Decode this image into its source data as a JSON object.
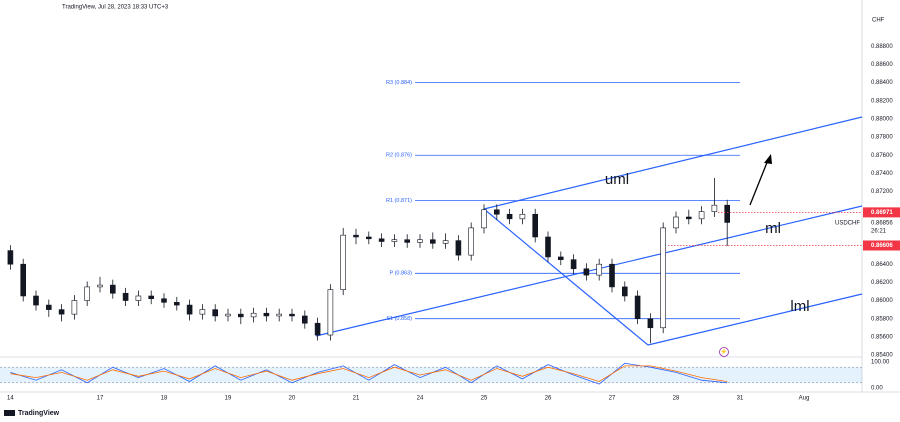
{
  "chart_data": {
    "type": "candlestick",
    "header": "TradingView, Jul 28, 2023 18:33 UTC+3",
    "currency": "CHF",
    "brand": "TradingView",
    "symbol": "USDCHF",
    "countdown": "26:21",
    "up_color": "#ffffff",
    "down_color": "#131722",
    "xlim": [
      -1.5625,
      11.9063
    ],
    "ylim": [
      0.854,
      0.892
    ],
    "grid": false,
    "xticks": [
      {
        "value": -1.4,
        "label": "14"
      },
      {
        "value": 0,
        "label": "17"
      },
      {
        "value": 1,
        "label": "18"
      },
      {
        "value": 2,
        "label": "19"
      },
      {
        "value": 3,
        "label": "20"
      },
      {
        "value": 4,
        "label": "21"
      },
      {
        "value": 5,
        "label": "24"
      },
      {
        "value": 6,
        "label": "25"
      },
      {
        "value": 7,
        "label": "26"
      },
      {
        "value": 8,
        "label": "27"
      },
      {
        "value": 9,
        "label": "28"
      },
      {
        "value": 10,
        "label": "31"
      },
      {
        "value": 11,
        "label": "Aug"
      }
    ],
    "yticks": [
      {
        "value": 0.888,
        "label": "0.88800"
      },
      {
        "value": 0.886,
        "label": "0.88600"
      },
      {
        "value": 0.884,
        "label": "0.88400"
      },
      {
        "value": 0.882,
        "label": "0.88200"
      },
      {
        "value": 0.88,
        "label": "0.88000"
      },
      {
        "value": 0.878,
        "label": "0.87800"
      },
      {
        "value": 0.876,
        "label": "0.87600"
      },
      {
        "value": 0.874,
        "label": "0.87400"
      },
      {
        "value": 0.872,
        "label": "0.87200"
      },
      {
        "value": 0.864,
        "label": "0.86400"
      },
      {
        "value": 0.862,
        "label": "0.86200"
      },
      {
        "value": 0.86,
        "label": "0.86000"
      },
      {
        "value": 0.858,
        "label": "0.85800"
      },
      {
        "value": 0.856,
        "label": "0.85600"
      },
      {
        "value": 0.854,
        "label": "0.85400"
      }
    ],
    "x": [
      -1.4,
      -1.2,
      -1,
      -0.8,
      -0.6,
      -0.4,
      -0.2,
      0,
      0.2,
      0.4,
      0.6,
      0.8,
      1,
      1.2,
      1.4,
      1.6,
      1.8,
      2,
      2.2,
      2.4,
      2.6,
      2.8,
      3,
      3.2,
      3.4,
      3.6,
      3.8,
      4,
      4.2,
      4.4,
      4.6,
      4.8,
      5,
      5.2,
      5.4,
      5.6,
      5.8,
      6,
      6.2,
      6.4,
      6.6,
      6.8,
      7,
      7.2,
      7.4,
      7.6,
      7.8,
      8,
      8.2,
      8.4,
      8.6,
      8.8,
      9,
      9.2,
      9.4,
      9.6,
      9.8
    ],
    "open": [
      0.8655,
      0.864,
      0.8605,
      0.8595,
      0.859,
      0.8585,
      0.86,
      0.8615,
      0.8617,
      0.8608,
      0.86,
      0.8605,
      0.8602,
      0.8598,
      0.8595,
      0.8585,
      0.859,
      0.8583,
      0.8585,
      0.8582,
      0.8586,
      0.8583,
      0.8585,
      0.8583,
      0.8575,
      0.8562,
      0.8612,
      0.8672,
      0.867,
      0.8668,
      0.8665,
      0.8667,
      0.8664,
      0.8667,
      0.8663,
      0.8666,
      0.865,
      0.868,
      0.87,
      0.8695,
      0.869,
      0.8695,
      0.867,
      0.8648,
      0.8645,
      0.8635,
      0.8628,
      0.864,
      0.8615,
      0.8605,
      0.858,
      0.857,
      0.868,
      0.8692,
      0.869,
      0.8698,
      0.8705
    ],
    "high": [
      0.8661,
      0.8646,
      0.8611,
      0.8601,
      0.8596,
      0.8606,
      0.8621,
      0.8626,
      0.8623,
      0.8614,
      0.8611,
      0.8611,
      0.8608,
      0.8604,
      0.8601,
      0.8596,
      0.8596,
      0.8591,
      0.8591,
      0.8592,
      0.8592,
      0.8591,
      0.8591,
      0.8589,
      0.8581,
      0.8618,
      0.868,
      0.8679,
      0.8676,
      0.8674,
      0.8673,
      0.8673,
      0.8673,
      0.8675,
      0.8674,
      0.8672,
      0.8686,
      0.8706,
      0.8706,
      0.8701,
      0.8701,
      0.8701,
      0.8676,
      0.8654,
      0.8651,
      0.8641,
      0.8646,
      0.8646,
      0.8621,
      0.8611,
      0.8586,
      0.8686,
      0.8698,
      0.87,
      0.8704,
      0.8735,
      0.8711
    ],
    "low": [
      0.8634,
      0.8599,
      0.8589,
      0.8582,
      0.8577,
      0.8579,
      0.8594,
      0.8609,
      0.8602,
      0.8594,
      0.8594,
      0.8596,
      0.8592,
      0.8589,
      0.8578,
      0.8579,
      0.8577,
      0.8577,
      0.8574,
      0.8576,
      0.8577,
      0.8577,
      0.8577,
      0.8569,
      0.8556,
      0.8556,
      0.8606,
      0.8662,
      0.8662,
      0.8659,
      0.8659,
      0.8658,
      0.8658,
      0.8657,
      0.8657,
      0.8644,
      0.8644,
      0.8674,
      0.8689,
      0.8684,
      0.8684,
      0.8664,
      0.8642,
      0.8639,
      0.8629,
      0.8622,
      0.8622,
      0.8609,
      0.8599,
      0.8574,
      0.8553,
      0.8564,
      0.8674,
      0.8684,
      0.8684,
      0.8692,
      0.866
    ],
    "close": [
      0.864,
      0.8605,
      0.8595,
      0.859,
      0.8585,
      0.86,
      0.8615,
      0.8617,
      0.8608,
      0.86,
      0.8605,
      0.8602,
      0.8598,
      0.8595,
      0.8585,
      0.859,
      0.8583,
      0.8585,
      0.8582,
      0.8586,
      0.8583,
      0.8585,
      0.8583,
      0.8575,
      0.8562,
      0.8612,
      0.8672,
      0.867,
      0.8668,
      0.8665,
      0.8667,
      0.8664,
      0.8667,
      0.8663,
      0.8666,
      0.865,
      0.868,
      0.87,
      0.8695,
      0.869,
      0.8695,
      0.867,
      0.8648,
      0.8645,
      0.8635,
      0.8628,
      0.864,
      0.8615,
      0.8605,
      0.858,
      0.857,
      0.868,
      0.8692,
      0.869,
      0.8698,
      0.8705,
      0.8686
    ],
    "pivots": [
      {
        "label": "R3 (0.884)",
        "value": 0.884
      },
      {
        "label": "R2 (0.876)",
        "value": 0.876
      },
      {
        "label": "R1 (0.871)",
        "value": 0.871
      },
      {
        "label": "P (0.863)",
        "value": 0.863
      },
      {
        "label": "S1 (0.858)",
        "value": 0.858
      }
    ],
    "price_labels": [
      {
        "value": 0.86971,
        "label": "0.86971",
        "color": "#f23645"
      },
      {
        "value": 0.86856,
        "label": "0.86856",
        "color": "#ffffff"
      },
      {
        "value": 0.86606,
        "label": "0.86606",
        "color": "#f23645"
      }
    ],
    "annotations": [
      "uml",
      "ml",
      "lml"
    ],
    "oscillator": {
      "ylim": [
        0,
        100
      ],
      "yticks": [
        {
          "value": 100,
          "label": "100.00"
        },
        {
          "value": 0,
          "label": "0.00"
        }
      ],
      "band": [
        20,
        80
      ],
      "x": [
        -1.4,
        -1,
        -0.6,
        -0.2,
        0.2,
        0.6,
        1,
        1.4,
        1.8,
        2.2,
        2.6,
        3,
        3.4,
        3.8,
        4.2,
        4.6,
        5,
        5.4,
        5.8,
        6.2,
        6.6,
        7,
        7.4,
        7.8,
        8.2,
        8.6,
        9,
        9.4,
        9.8
      ],
      "series": [
        {
          "color": "#2962ff",
          "values": [
            60,
            30,
            70,
            20,
            80,
            40,
            75,
            25,
            85,
            30,
            70,
            20,
            60,
            85,
            30,
            90,
            40,
            80,
            20,
            85,
            35,
            90,
            50,
            15,
            95,
            80,
            60,
            30,
            20
          ]
        },
        {
          "color": "#ff6d00",
          "values": [
            55,
            40,
            60,
            30,
            70,
            45,
            65,
            35,
            75,
            40,
            65,
            30,
            55,
            75,
            40,
            80,
            50,
            70,
            30,
            75,
            45,
            80,
            55,
            25,
            85,
            85,
            65,
            40,
            25
          ]
        }
      ]
    }
  }
}
